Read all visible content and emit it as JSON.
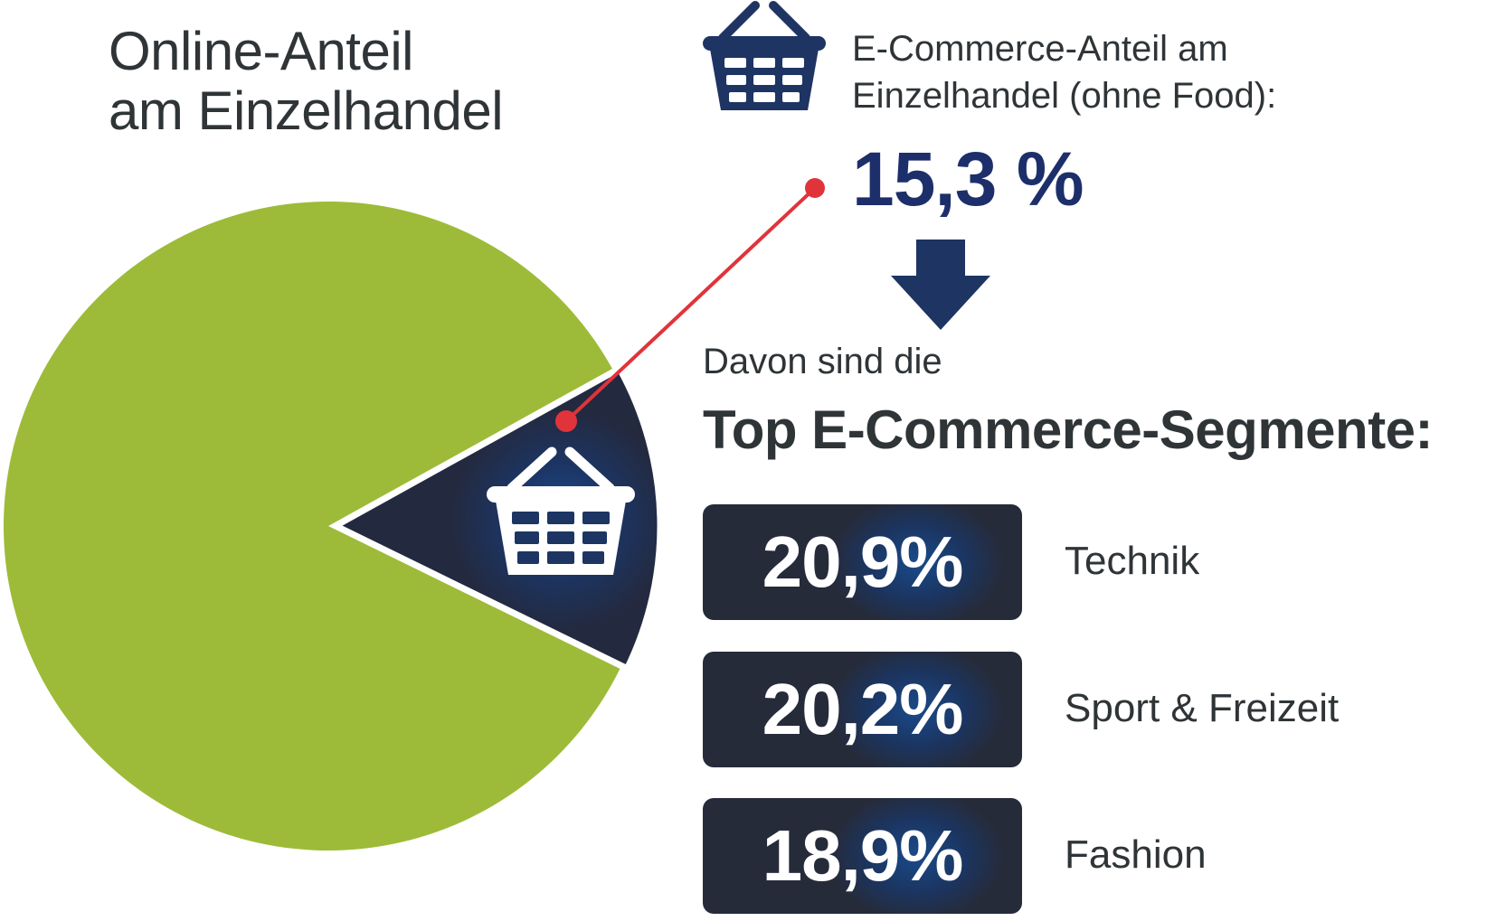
{
  "title": {
    "line1": "Online-Anteil",
    "line2": "am Einzelhandel"
  },
  "ecommerce_share": {
    "label_line1": "E-Commerce-Anteil am",
    "label_line2": "Einzelhandel (ohne Food):",
    "value": "15,3 %"
  },
  "segments_intro": "Davon sind die",
  "segments_title": "Top E-Commerce-Segmente:",
  "segments": [
    {
      "value": "20,9%",
      "label": "Technik"
    },
    {
      "value": "20,2%",
      "label": "Sport & Freizeit"
    },
    {
      "value": "18,9%",
      "label": "Fashion"
    }
  ],
  "icons": {
    "basket": "shopping-basket-icon",
    "arrow": "arrow-down-icon"
  },
  "colors": {
    "pie_rest": "#9dbb38",
    "pie_online": "#1f2f55",
    "highlight_value": "#1d2f6a",
    "leader_line": "#e0343a",
    "segment_box": "#262b3a"
  },
  "chart_data": {
    "type": "pie",
    "title": "Online-Anteil am Einzelhandel",
    "slices": [
      {
        "label": "E-Commerce-Anteil am Einzelhandel (ohne Food)",
        "value": 15.3
      },
      {
        "label": "",
        "value": 84.7
      }
    ]
  }
}
